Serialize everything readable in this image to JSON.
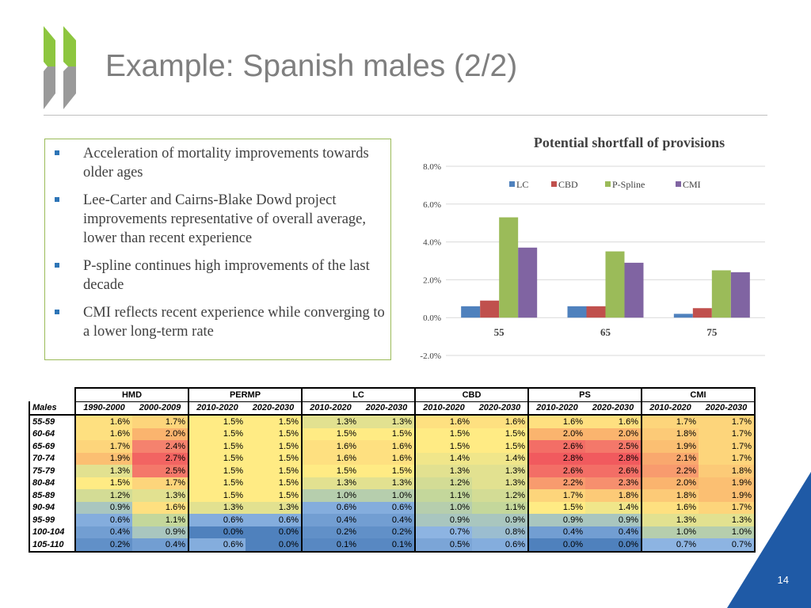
{
  "slide": {
    "title": "Example: Spanish males (2/2)",
    "page_number": "14",
    "bullets": [
      "Acceleration of mortality improvements towards older ages",
      "Lee-Carter and Cairns-Blake Dowd project improvements representative of overall average, lower than recent experience",
      "P-spline continues high improvements of the last decade",
      "CMI reflects recent experience while converging to a lower long-term rate"
    ],
    "colors": {
      "accent_green": "#9bbb59",
      "logo_green": "#8dc63f",
      "logo_grey": "#9a9a9a",
      "corner_blue": "#1f5aa6",
      "bullet_blue": "#2e75b6"
    }
  },
  "chart_data": {
    "type": "bar",
    "title": "Potential shortfall of provisions",
    "categories": [
      "55",
      "65",
      "75"
    ],
    "series": [
      {
        "name": "LC",
        "color": "#4f81bd",
        "values": [
          0.6,
          0.6,
          0.2
        ]
      },
      {
        "name": "CBD",
        "color": "#c0504d",
        "values": [
          0.9,
          0.6,
          0.5
        ]
      },
      {
        "name": "P-Spline",
        "color": "#9bbb59",
        "values": [
          5.3,
          3.5,
          2.5
        ]
      },
      {
        "name": "CMI",
        "color": "#8064a2",
        "values": [
          3.7,
          2.9,
          2.4
        ]
      }
    ],
    "yticks": [
      "-2.0%",
      "0.0%",
      "2.0%",
      "4.0%",
      "6.0%",
      "8.0%"
    ],
    "ylim": [
      -2,
      8
    ],
    "grid": true,
    "legend_position": "top"
  },
  "table": {
    "corner_label": "Males",
    "groups": [
      "HMD",
      "PERMP",
      "LC",
      "CBD",
      "PS",
      "CMI"
    ],
    "subheaders": [
      "1990-2000",
      "2000-2009",
      "2010-2020",
      "2020-2030",
      "2010-2020",
      "2020-2030",
      "2010-2020",
      "2020-2030",
      "2010-2020",
      "2020-2030",
      "2010-2020",
      "2020-2030"
    ],
    "rows": [
      {
        "label": "55-59",
        "values": [
          "1.6%",
          "1.7%",
          "1.5%",
          "1.5%",
          "1.3%",
          "1.3%",
          "1.6%",
          "1.6%",
          "1.6%",
          "1.6%",
          "1.7%",
          "1.7%"
        ]
      },
      {
        "label": "60-64",
        "values": [
          "1.6%",
          "2.0%",
          "1.5%",
          "1.5%",
          "1.5%",
          "1.5%",
          "1.5%",
          "1.5%",
          "2.0%",
          "2.0%",
          "1.8%",
          "1.7%"
        ]
      },
      {
        "label": "65-69",
        "values": [
          "1.7%",
          "2.4%",
          "1.5%",
          "1.5%",
          "1.6%",
          "1.6%",
          "1.5%",
          "1.5%",
          "2.6%",
          "2.5%",
          "1.9%",
          "1.7%"
        ]
      },
      {
        "label": "70-74",
        "values": [
          "1.9%",
          "2.7%",
          "1.5%",
          "1.5%",
          "1.6%",
          "1.6%",
          "1.4%",
          "1.4%",
          "2.8%",
          "2.8%",
          "2.1%",
          "1.7%"
        ]
      },
      {
        "label": "75-79",
        "values": [
          "1.3%",
          "2.5%",
          "1.5%",
          "1.5%",
          "1.5%",
          "1.5%",
          "1.3%",
          "1.3%",
          "2.6%",
          "2.6%",
          "2.2%",
          "1.8%"
        ]
      },
      {
        "label": "80-84",
        "values": [
          "1.5%",
          "1.7%",
          "1.5%",
          "1.5%",
          "1.3%",
          "1.3%",
          "1.2%",
          "1.3%",
          "2.2%",
          "2.3%",
          "2.0%",
          "1.9%"
        ]
      },
      {
        "label": "85-89",
        "values": [
          "1.2%",
          "1.3%",
          "1.5%",
          "1.5%",
          "1.0%",
          "1.0%",
          "1.1%",
          "1.2%",
          "1.7%",
          "1.8%",
          "1.8%",
          "1.9%"
        ]
      },
      {
        "label": "90-94",
        "values": [
          "0.9%",
          "1.6%",
          "1.3%",
          "1.3%",
          "0.6%",
          "0.6%",
          "1.0%",
          "1.1%",
          "1.5%",
          "1.4%",
          "1.6%",
          "1.7%"
        ]
      },
      {
        "label": "95-99",
        "values": [
          "0.6%",
          "1.1%",
          "0.6%",
          "0.6%",
          "0.4%",
          "0.4%",
          "0.9%",
          "0.9%",
          "0.9%",
          "0.9%",
          "1.3%",
          "1.3%"
        ]
      },
      {
        "label": "100-104",
        "values": [
          "0.4%",
          "0.9%",
          "0.0%",
          "0.0%",
          "0.2%",
          "0.2%",
          "0.7%",
          "0.8%",
          "0.4%",
          "0.4%",
          "1.0%",
          "1.0%"
        ]
      },
      {
        "label": "105-110",
        "values": [
          "0.2%",
          "0.4%",
          "0.6%",
          "0.0%",
          "0.1%",
          "0.1%",
          "0.5%",
          "0.6%",
          "0.0%",
          "0.0%",
          "0.7%",
          "0.7%"
        ]
      }
    ]
  }
}
